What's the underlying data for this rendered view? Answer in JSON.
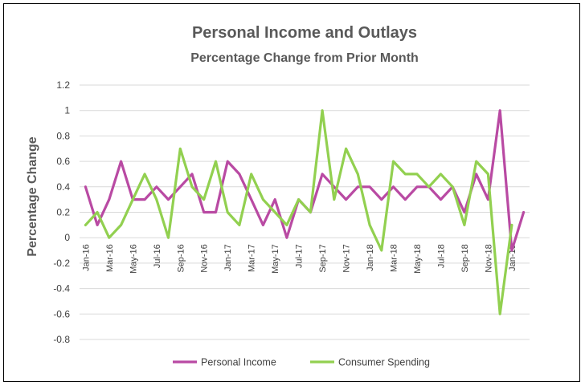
{
  "chart_data": {
    "type": "line",
    "title": "Personal Income and Outlays",
    "subtitle": "Percentage Change from Prior Month",
    "ylabel": "Percentage Change",
    "xlabel": "",
    "ylim": [
      -0.8,
      1.2
    ],
    "ytick_step": 0.2,
    "y_ticks": [
      "1.2",
      "1",
      "0.8",
      "0.6",
      "0.4",
      "0.2",
      "0",
      "-0.2",
      "-0.4",
      "-0.6",
      "-0.8"
    ],
    "grid": "horizontal",
    "legend_position": "bottom",
    "x": [
      "Jan-16",
      "Feb-16",
      "Mar-16",
      "Apr-16",
      "May-16",
      "Jun-16",
      "Jul-16",
      "Aug-16",
      "Sep-16",
      "Oct-16",
      "Nov-16",
      "Dec-16",
      "Jan-17",
      "Feb-17",
      "Mar-17",
      "Apr-17",
      "May-17",
      "Jun-17",
      "Jul-17",
      "Aug-17",
      "Sep-17",
      "Oct-17",
      "Nov-17",
      "Dec-17",
      "Jan-18",
      "Feb-18",
      "Mar-18",
      "Apr-18",
      "May-18",
      "Jun-18",
      "Jul-18",
      "Aug-18",
      "Sep-18",
      "Oct-18",
      "Nov-18",
      "Dec-18",
      "Jan-19",
      "Feb-19"
    ],
    "x_tick_labels": [
      "Jan-16",
      "Mar-16",
      "May-16",
      "Jul-16",
      "Sep-16",
      "Nov-16",
      "Jan-17",
      "Mar-17",
      "May-17",
      "Jul-17",
      "Sep-17",
      "Nov-17",
      "Jan-18",
      "Mar-18",
      "May-18",
      "Jul-18",
      "Sep-18",
      "Nov-18",
      "Jan-19"
    ],
    "series": [
      {
        "name": "Personal Income",
        "color": "#b94aa3",
        "values": [
          0.4,
          0.1,
          0.3,
          0.6,
          0.3,
          0.3,
          0.4,
          0.3,
          0.4,
          0.5,
          0.2,
          0.2,
          0.6,
          0.5,
          0.3,
          0.1,
          0.3,
          0.0,
          0.3,
          0.2,
          0.5,
          0.4,
          0.3,
          0.4,
          0.4,
          0.3,
          0.4,
          0.3,
          0.4,
          0.4,
          0.3,
          0.4,
          0.2,
          0.5,
          0.3,
          1.0,
          -0.1,
          0.2
        ]
      },
      {
        "name": "Consumer Spending",
        "color": "#92d050",
        "values": [
          0.1,
          0.2,
          0.0,
          0.1,
          0.3,
          0.5,
          0.3,
          0.0,
          0.7,
          0.4,
          0.3,
          0.6,
          0.2,
          0.1,
          0.5,
          0.3,
          0.2,
          0.1,
          0.3,
          0.2,
          1.0,
          0.3,
          0.7,
          0.5,
          0.1,
          -0.1,
          0.6,
          0.5,
          0.5,
          0.4,
          0.5,
          0.4,
          0.1,
          0.6,
          0.5,
          -0.6,
          0.1,
          null
        ]
      }
    ]
  }
}
